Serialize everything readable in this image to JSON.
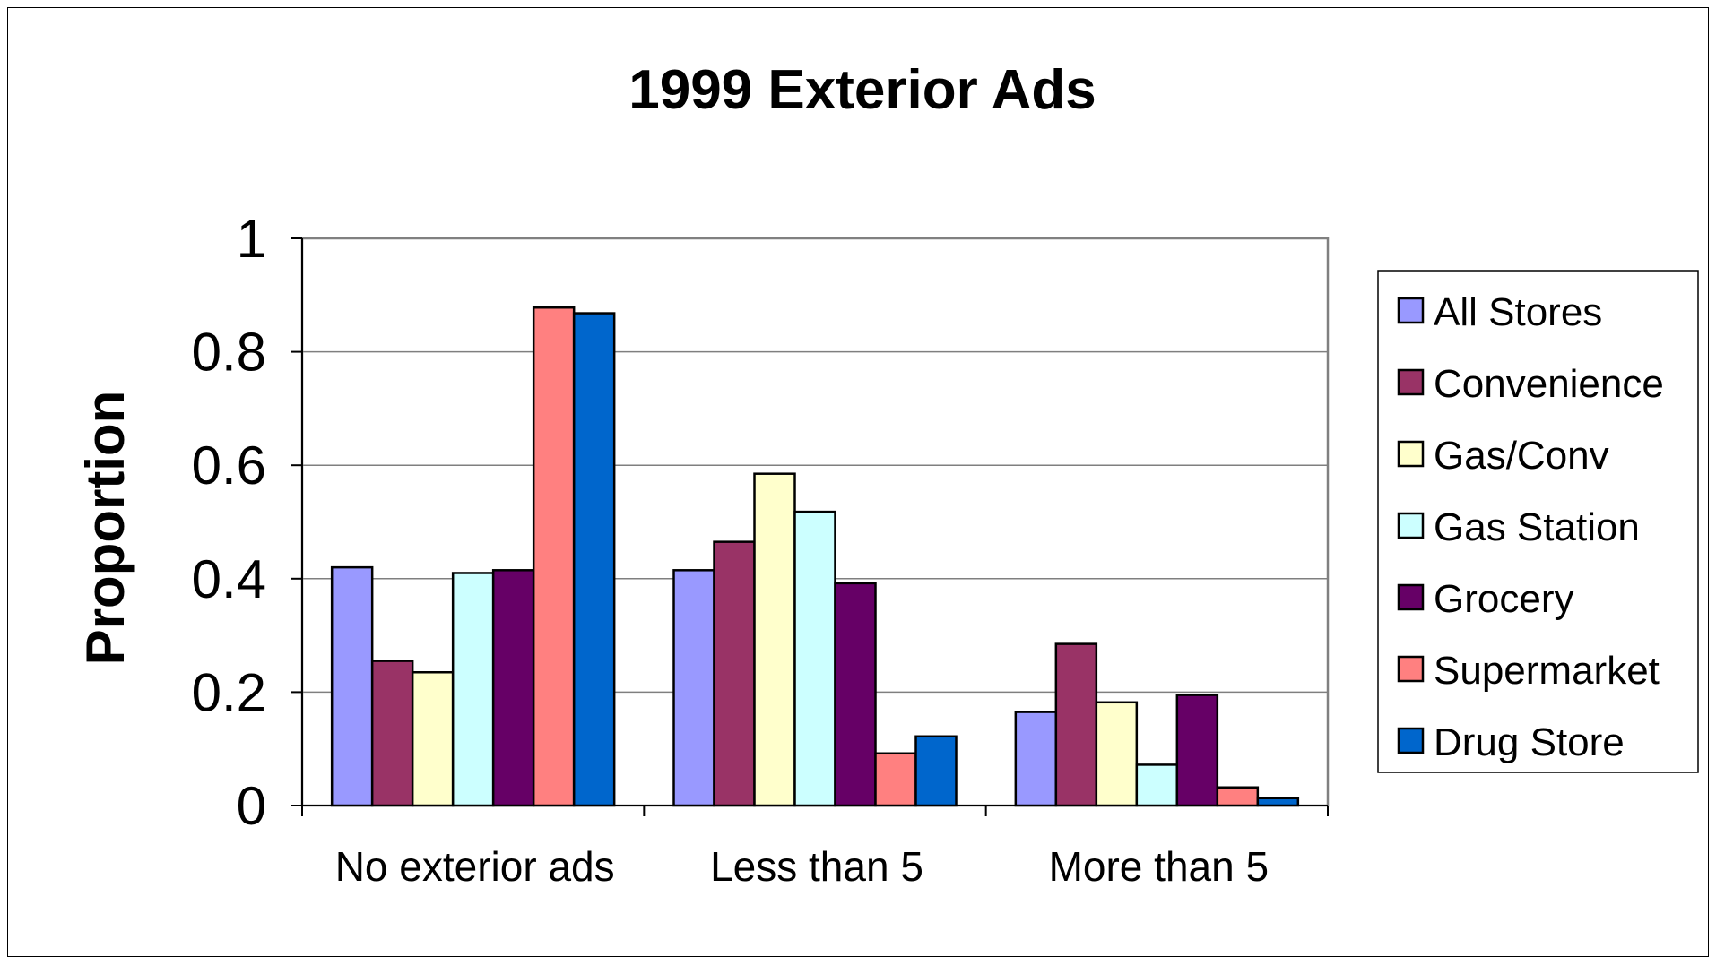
{
  "chart_data": {
    "type": "bar",
    "title": "1999 Exterior Ads",
    "xlabel": "",
    "ylabel": "Proportion",
    "ylim": [
      0,
      1
    ],
    "yticks": [
      "0",
      "0.2",
      "0.4",
      "0.6",
      "0.8",
      "1"
    ],
    "grid": true,
    "legend_position": "right",
    "categories": [
      "No exterior ads",
      "Less than 5",
      "More than 5"
    ],
    "series": [
      {
        "name": "All Stores",
        "color": "#9999FF",
        "values": [
          0.42,
          0.415,
          0.165
        ]
      },
      {
        "name": "Convenience",
        "color": "#993366",
        "values": [
          0.255,
          0.465,
          0.285
        ]
      },
      {
        "name": "Gas/Conv",
        "color": "#FFFFCC",
        "values": [
          0.235,
          0.585,
          0.182
        ]
      },
      {
        "name": "Gas Station",
        "color": "#CCFFFF",
        "values": [
          0.41,
          0.518,
          0.072
        ]
      },
      {
        "name": "Grocery",
        "color": "#660066",
        "values": [
          0.415,
          0.392,
          0.195
        ]
      },
      {
        "name": "Supermarket",
        "color": "#FF8080",
        "values": [
          0.878,
          0.092,
          0.032
        ]
      },
      {
        "name": "Drug Store",
        "color": "#0066CC",
        "values": [
          0.868,
          0.122,
          0.013
        ]
      }
    ]
  }
}
